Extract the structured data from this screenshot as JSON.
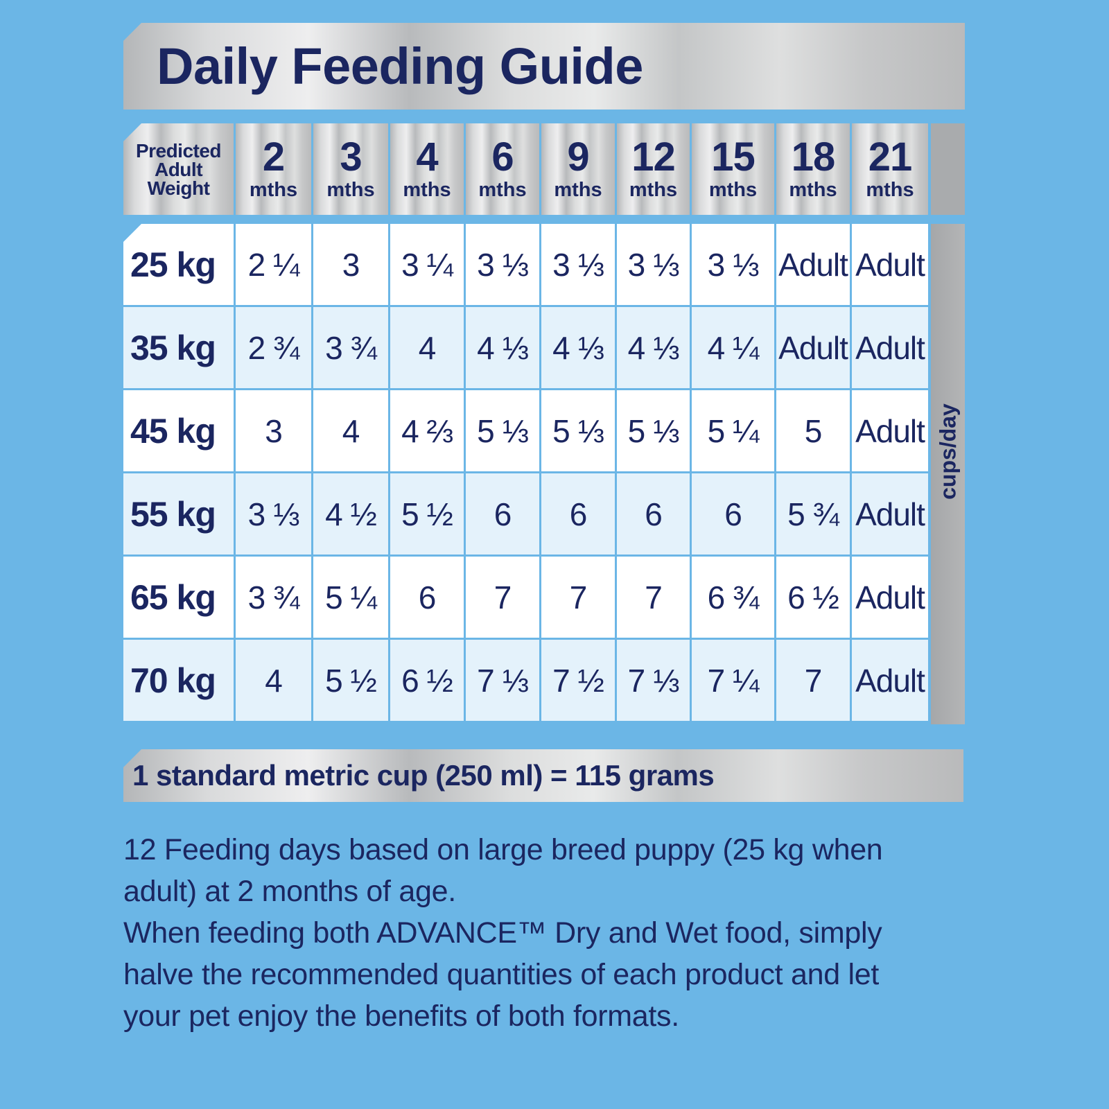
{
  "title": "Daily Feeding Guide",
  "table": {
    "weight_header": [
      "Predicted",
      "Adult",
      "Weight"
    ],
    "age_columns": [
      {
        "num": "2",
        "unit": "mths"
      },
      {
        "num": "3",
        "unit": "mths"
      },
      {
        "num": "4",
        "unit": "mths"
      },
      {
        "num": "6",
        "unit": "mths"
      },
      {
        "num": "9",
        "unit": "mths"
      },
      {
        "num": "12",
        "unit": "mths"
      },
      {
        "num": "15",
        "unit": "mths"
      },
      {
        "num": "18",
        "unit": "mths"
      },
      {
        "num": "21",
        "unit": "mths"
      }
    ],
    "unit_label": "cups/day",
    "rows": [
      {
        "weight": "25 kg",
        "values": [
          "2 ¼",
          "3",
          "3 ¼",
          "3 ⅓",
          "3 ⅓",
          "3 ⅓",
          "3 ⅓",
          "Adult",
          "Adult"
        ]
      },
      {
        "weight": "35 kg",
        "values": [
          "2 ¾",
          "3 ¾",
          "4",
          "4 ⅓",
          "4 ⅓",
          "4 ⅓",
          "4 ¼",
          "Adult",
          "Adult"
        ]
      },
      {
        "weight": "45 kg",
        "values": [
          "3",
          "4",
          "4 ⅔",
          "5 ⅓",
          "5 ⅓",
          "5 ⅓",
          "5 ¼",
          "5",
          "Adult"
        ]
      },
      {
        "weight": "55 kg",
        "values": [
          "3 ⅓",
          "4 ½",
          "5 ½",
          "6",
          "6",
          "6",
          "6",
          "5 ¾",
          "Adult"
        ]
      },
      {
        "weight": "65 kg",
        "values": [
          "3 ¾",
          "5 ¼",
          "6",
          "7",
          "7",
          "7",
          "6 ¾",
          "6 ½",
          "Adult"
        ]
      },
      {
        "weight": "70 kg",
        "values": [
          "4",
          "5 ½",
          "6 ½",
          "7 ⅓",
          "7 ½",
          "7 ⅓",
          "7 ¼",
          "7",
          "Adult"
        ]
      }
    ]
  },
  "footer_bar": "1 standard metric cup (250 ml) = 115 grams",
  "notes": [
    "12 Feeding days based on large breed puppy (25 kg when adult) at 2 months of age.",
    "When feeding both ADVANCE™ Dry and Wet food, simply halve the recommended quantities of each product and let your pet enjoy the benefits of both formats."
  ],
  "colors": {
    "background": "#6bb6e6",
    "text": "#1b2660",
    "row_white": "#ffffff",
    "row_tint": "#e4f2fb",
    "side_strip": "#a9abad"
  }
}
